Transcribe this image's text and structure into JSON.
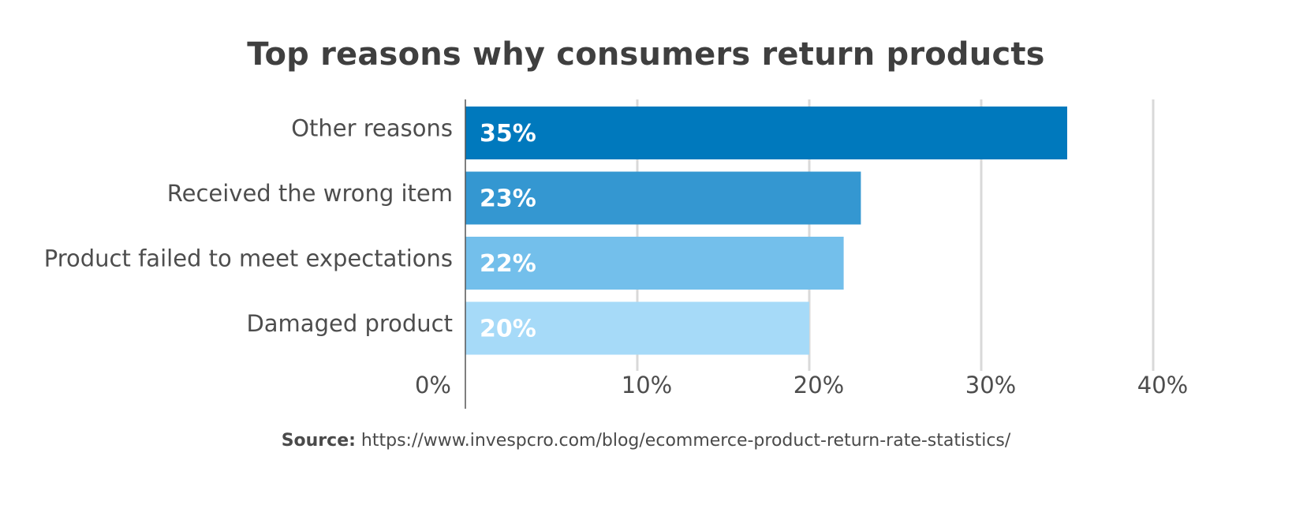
{
  "chart_data": {
    "type": "bar",
    "orientation": "horizontal",
    "title": "Top reasons why consumers return products",
    "categories": [
      "Other reasons",
      "Received the wrong item",
      "Product failed to meet expectations",
      "Damaged product"
    ],
    "values": [
      35,
      23,
      22,
      20
    ],
    "data_labels": [
      "35%",
      "23%",
      "22%",
      "20%"
    ],
    "bar_colors": [
      "#0079bd",
      "#3497d1",
      "#73bfeb",
      "#a6daf8"
    ],
    "xlim": [
      0,
      40
    ],
    "x_ticks": [
      0,
      10,
      20,
      30,
      40
    ],
    "x_tick_labels": [
      "0%",
      "10%",
      "20%",
      "30%",
      "40%"
    ],
    "xlabel": "",
    "ylabel": "",
    "grid": "vertical",
    "gridline_color": "#d9d9d9"
  },
  "source": {
    "label": "Source:",
    "url": "https://www.invespcro.com/blog/ecommerce-product-return-rate-statistics/"
  }
}
